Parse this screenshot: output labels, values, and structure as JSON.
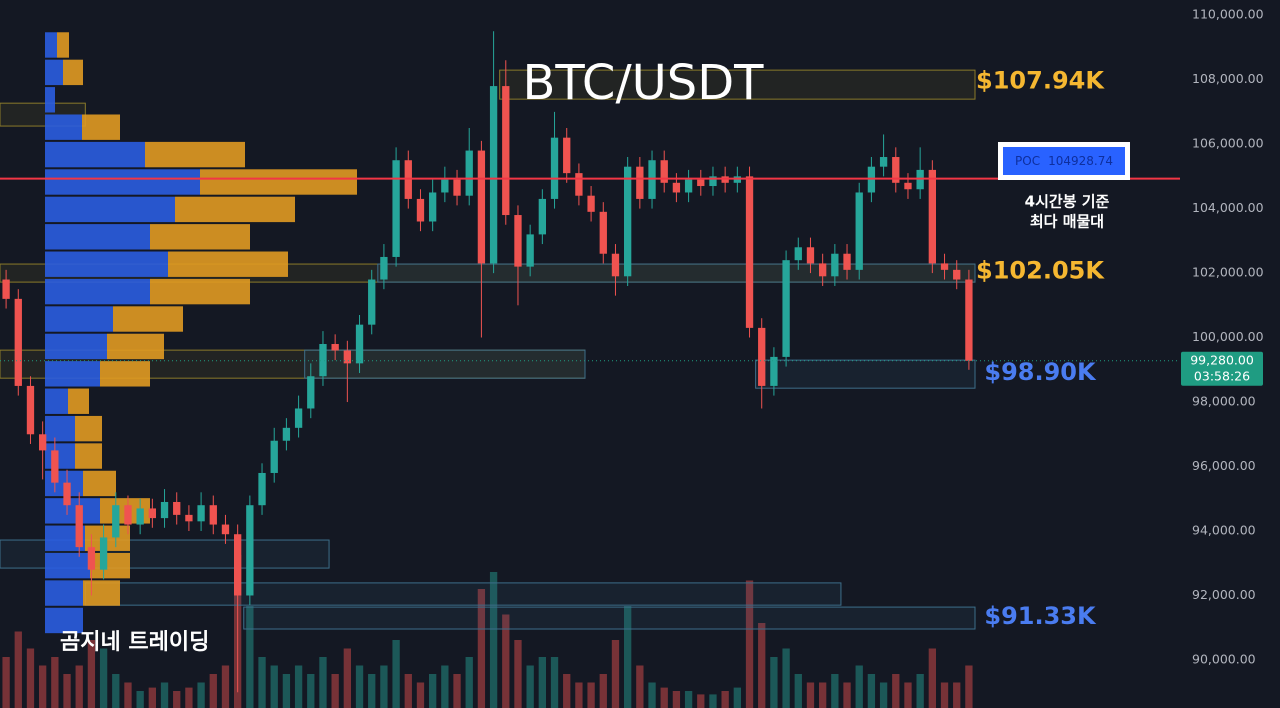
{
  "chart_data": {
    "type": "candlestick",
    "title": "BTC/USDT",
    "categories": [
      null,
      null,
      null,
      null,
      null,
      null,
      null,
      null,
      null,
      null,
      null,
      null,
      null,
      null,
      null,
      null,
      null,
      null,
      null,
      null,
      null,
      null,
      null,
      null,
      null,
      null,
      null,
      null,
      null,
      null,
      null,
      null,
      null,
      null,
      null,
      null,
      null,
      null,
      null,
      null,
      null,
      null,
      null,
      null,
      null,
      null,
      null,
      null,
      null,
      null,
      null,
      null,
      null,
      null,
      null,
      null,
      null,
      null,
      null,
      null,
      null,
      null,
      null,
      null,
      null,
      null,
      null,
      null,
      null,
      null,
      null,
      null,
      null,
      null,
      null,
      null,
      null,
      null,
      null,
      null
    ],
    "open": [
      101800,
      101200,
      98500,
      97000,
      96500,
      95500,
      94800,
      93500,
      92800,
      93800,
      94800,
      94200,
      94700,
      94400,
      94900,
      94500,
      94300,
      94800,
      94200,
      93900,
      92000,
      94800,
      95800,
      96800,
      97200,
      97800,
      98800,
      99800,
      99600,
      99200,
      100400,
      101800,
      102500,
      105500,
      104300,
      103600,
      104500,
      104900,
      104400,
      105800,
      102300,
      107800,
      103800,
      102200,
      103200,
      104300,
      106200,
      105100,
      104400,
      103900,
      102600,
      101900,
      105300,
      104300,
      105500,
      104800,
      104500,
      104900,
      104700,
      105000,
      104800,
      105000,
      100300,
      98500,
      99400,
      102400,
      102800,
      102300,
      101900,
      102600,
      102100,
      104500,
      105300,
      105600,
      104800,
      104600,
      105200,
      102300,
      102100,
      101800
    ],
    "high": [
      102100,
      101500,
      98800,
      97400,
      96900,
      95900,
      95200,
      93900,
      94200,
      95200,
      95100,
      95000,
      95000,
      95300,
      95200,
      94800,
      95200,
      95100,
      94500,
      94200,
      95100,
      96100,
      97200,
      97500,
      98200,
      99200,
      100200,
      100100,
      99900,
      100700,
      102100,
      102900,
      105900,
      105800,
      104600,
      104900,
      105300,
      105200,
      106500,
      106100,
      109500,
      108600,
      104100,
      103500,
      104600,
      107000,
      106500,
      105400,
      104700,
      104200,
      102900,
      105600,
      105600,
      105800,
      105800,
      105100,
      105200,
      105200,
      105300,
      105300,
      105300,
      105300,
      100600,
      99700,
      102700,
      103100,
      103100,
      102600,
      102900,
      102900,
      104800,
      105600,
      106300,
      105900,
      105100,
      105900,
      105500,
      102600,
      102400,
      102100
    ],
    "low": [
      100900,
      98200,
      96700,
      95600,
      95200,
      94500,
      93200,
      92000,
      92500,
      93500,
      93900,
      93900,
      94100,
      94100,
      94200,
      94000,
      94000,
      93900,
      93600,
      89000,
      91700,
      94500,
      95500,
      96500,
      96900,
      97500,
      98500,
      99300,
      98000,
      98900,
      100100,
      101500,
      102200,
      104000,
      103300,
      103300,
      104200,
      104100,
      104100,
      100000,
      102000,
      103500,
      101000,
      101900,
      102900,
      104000,
      104800,
      104100,
      103600,
      102300,
      101300,
      101600,
      104000,
      104000,
      104500,
      104200,
      104200,
      104400,
      104400,
      104500,
      104500,
      100000,
      97800,
      98200,
      99100,
      102100,
      102000,
      101600,
      101600,
      101800,
      101800,
      104200,
      105000,
      104500,
      104300,
      104300,
      102000,
      101800,
      101500,
      99000
    ],
    "close": [
      101200,
      98500,
      97000,
      96500,
      95500,
      94800,
      93500,
      92800,
      93800,
      94800,
      94200,
      94700,
      94400,
      94900,
      94500,
      94300,
      94800,
      94200,
      93900,
      92000,
      94800,
      95800,
      96800,
      97200,
      97800,
      98800,
      99800,
      99600,
      99200,
      100400,
      101800,
      102500,
      105500,
      104300,
      103600,
      104500,
      104900,
      104400,
      105800,
      102300,
      107800,
      103800,
      102200,
      103200,
      104300,
      106200,
      105100,
      104400,
      103900,
      102600,
      101900,
      105300,
      104300,
      105500,
      104800,
      104500,
      104900,
      104700,
      105000,
      104800,
      105000,
      100300,
      98500,
      99400,
      102400,
      102800,
      102300,
      101900,
      102600,
      102100,
      104500,
      105300,
      105600,
      104800,
      104600,
      105200,
      102300,
      102100,
      101800,
      99280
    ],
    "up_color": "#26a69a",
    "down_color": "#ef5350",
    "volume": [
      30,
      45,
      35,
      25,
      30,
      20,
      25,
      40,
      35,
      20,
      15,
      10,
      12,
      15,
      10,
      12,
      15,
      20,
      25,
      90,
      60,
      30,
      25,
      20,
      25,
      20,
      30,
      20,
      35,
      25,
      20,
      25,
      40,
      20,
      15,
      20,
      25,
      20,
      30,
      70,
      80,
      55,
      40,
      25,
      30,
      30,
      20,
      15,
      15,
      20,
      40,
      60,
      25,
      15,
      12,
      10,
      10,
      8,
      8,
      10,
      12,
      75,
      50,
      30,
      35,
      20,
      15,
      15,
      20,
      15,
      25,
      20,
      15,
      20,
      15,
      20,
      35,
      15,
      15,
      25
    ],
    "volume_lim": [
      0,
      100
    ],
    "ylim": [
      88510,
      110470
    ],
    "yticks": [
      {
        "value": 110000,
        "label": "110,000.00"
      },
      {
        "value": 108000,
        "label": "108,000.00"
      },
      {
        "value": 106000,
        "label": "106,000.00"
      },
      {
        "value": 104000,
        "label": "104,000.00"
      },
      {
        "value": 102000,
        "label": "102,000.00"
      },
      {
        "value": 100000,
        "label": "100,000.00"
      },
      {
        "value": 98000,
        "label": "98,000.00"
      },
      {
        "value": 96000,
        "label": "96,000.00"
      },
      {
        "value": 94000,
        "label": "94,000.00"
      },
      {
        "value": 92000,
        "label": "92,000.00"
      },
      {
        "value": 90000,
        "label": "90,000.00"
      }
    ],
    "grid": true,
    "poc": {
      "label": "POC",
      "value": 104928.74,
      "color": "#f23645"
    },
    "last_price": {
      "value": 99280,
      "label": "99,280.00",
      "countdown": "03:58:26",
      "color": "#1f9c82"
    },
    "zones": [
      {
        "low": 107395,
        "high": 108295,
        "from": 41,
        "to": 80,
        "color": "#8a7a2a"
      },
      {
        "low": 106560,
        "high": 107270,
        "from": 0,
        "to": 7,
        "color": "#8a7a2a"
      },
      {
        "low": 101720,
        "high": 102280,
        "from": 0,
        "to": 80,
        "color": "#8a7a2a"
      },
      {
        "low": 101720,
        "high": 102280,
        "from": 31,
        "to": 80,
        "color": "#3d6e8a"
      },
      {
        "low": 98740,
        "high": 99610,
        "from": 0,
        "to": 48,
        "color": "#8a7a2a"
      },
      {
        "low": 98740,
        "high": 99610,
        "from": 25,
        "to": 48,
        "color": "#3d6e8a"
      },
      {
        "low": 98430,
        "high": 99300,
        "from": 62,
        "to": 80,
        "color": "#3d6e8a"
      },
      {
        "low": 92850,
        "high": 93720,
        "from": 0,
        "to": 27,
        "color": "#3d6e8a"
      },
      {
        "low": 91700,
        "high": 92390,
        "from": 7,
        "to": 69,
        "color": "#3d6e8a"
      },
      {
        "low": 90960,
        "high": 91640,
        "from": 20,
        "to": 80,
        "color": "#3d6e8a"
      }
    ],
    "level_labels": [
      {
        "text": "$107.94K",
        "value": 107940,
        "color": "#f5b731"
      },
      {
        "text": "$102.05K",
        "value": 102050,
        "color": "#f5b731"
      },
      {
        "text": "$98.90K",
        "value": 98900,
        "color": "#4a7cf0"
      },
      {
        "text": "$91.33K",
        "value": 91330,
        "color": "#4a7cf0"
      }
    ],
    "profile": {
      "bins": [
        109500,
        108650,
        107800,
        106950,
        106100,
        105250,
        104400,
        103550,
        102700,
        101850,
        101000,
        100150,
        99300,
        98450,
        97600,
        96750,
        95900,
        95050,
        94200,
        93350,
        92500,
        91650,
        90800
      ],
      "series": [
        {
          "color": "#2a5de0",
          "values": [
            12,
            18,
            10,
            37,
            100,
            155,
            130,
            105,
            123,
            105,
            68,
            62,
            55,
            23,
            30,
            30,
            38,
            55,
            40,
            45,
            38,
            38
          ]
        },
        {
          "color": "#e09a22",
          "values": [
            12,
            20,
            0,
            38,
            100,
            157,
            120,
            100,
            120,
            100,
            70,
            57,
            50,
            21,
            27,
            27,
            33,
            50,
            45,
            40,
            37,
            0
          ]
        }
      ]
    },
    "annotations": {
      "poc_note": [
        "4시간봉 기준",
        "최다 매물대"
      ],
      "watermark": "곰지네 트레이딩"
    }
  }
}
